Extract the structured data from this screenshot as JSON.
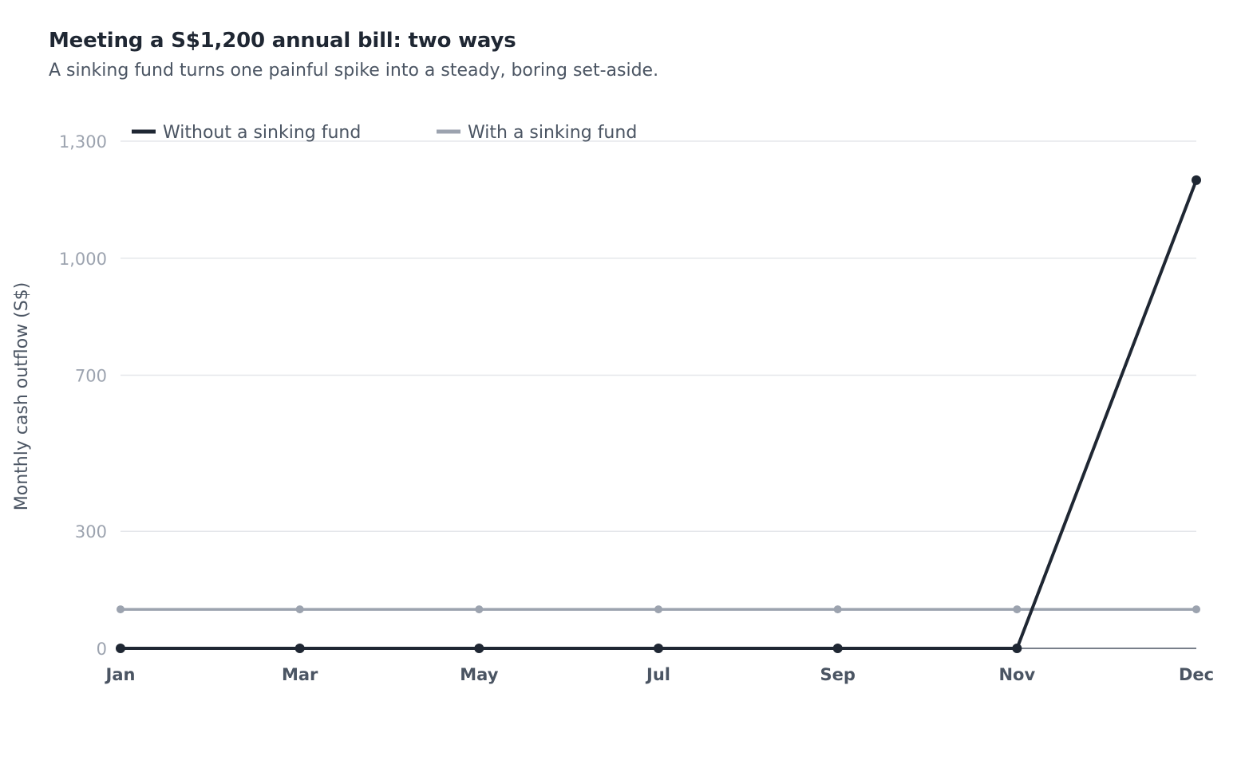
{
  "chart_data": {
    "type": "line",
    "title": "Meeting a S$1,200 annual bill: two ways",
    "subtitle": "A sinking fund turns one painful spike into a steady, boring set-aside.",
    "xlabel": "",
    "ylabel": "Monthly cash outflow (S$)",
    "x": [
      "Jan",
      "Mar",
      "May",
      "Jul",
      "Sep",
      "Nov",
      "Dec"
    ],
    "ylim": [
      0,
      1300
    ],
    "yticks": [
      0,
      300,
      700,
      1000,
      1300
    ],
    "ytick_labels": [
      "0",
      "300",
      "700",
      "1,000",
      "1,300"
    ],
    "grid": true,
    "legend": "top-left",
    "series": [
      {
        "name": "Without a sinking fund",
        "color": "#1f2733",
        "values": [
          0,
          0,
          0,
          0,
          0,
          0,
          1200
        ]
      },
      {
        "name": "With a sinking fund",
        "color": "#9ca3af",
        "values": [
          100,
          100,
          100,
          100,
          100,
          100,
          100
        ]
      }
    ]
  }
}
